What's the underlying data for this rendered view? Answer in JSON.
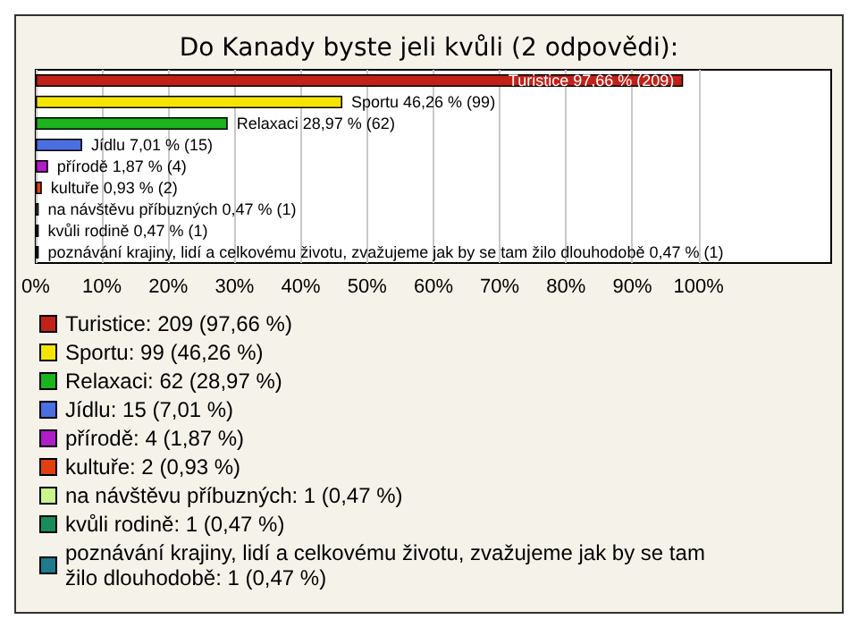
{
  "chart_data": {
    "type": "bar",
    "orientation": "horizontal",
    "title": "Do Kanady byste jeli kvůli (2 odpovědi):",
    "categories": [
      null,
      null,
      null,
      null,
      null,
      null,
      null,
      null,
      null
    ],
    "xlim": [
      0,
      120
    ],
    "xticks": [
      {
        "value": 0,
        "label": "0%"
      },
      {
        "value": 10,
        "label": "10%"
      },
      {
        "value": 20,
        "label": "20%"
      },
      {
        "value": 30,
        "label": "30%"
      },
      {
        "value": 40,
        "label": "40%"
      },
      {
        "value": 50,
        "label": "50%"
      },
      {
        "value": 60,
        "label": "60%"
      },
      {
        "value": 70,
        "label": "70%"
      },
      {
        "value": 80,
        "label": "80%"
      },
      {
        "value": 90,
        "label": "90%"
      },
      {
        "value": 100,
        "label": "100%"
      }
    ],
    "tick_labels": "x",
    "grid": "x",
    "legend": "bottom",
    "series": [
      {
        "name": "Turistice: 209 (97,66 %)",
        "color": "#c0221a",
        "values": [
          97.66,
          null,
          null,
          null,
          null,
          null,
          null,
          null,
          null
        ],
        "value_labels": [
          "Turistice 97,66 % (209)",
          null,
          null,
          null,
          null,
          null,
          null,
          null,
          null
        ]
      },
      {
        "name": "Sportu: 99 (46,26 %)",
        "color": "#f5e400",
        "values": [
          null,
          46.26,
          null,
          null,
          null,
          null,
          null,
          null,
          null
        ],
        "value_labels": [
          null,
          "Sportu 46,26 % (99)",
          null,
          null,
          null,
          null,
          null,
          null,
          null
        ]
      },
      {
        "name": "Relaxaci: 62 (28,97 %)",
        "color": "#1cb31c",
        "values": [
          null,
          null,
          28.97,
          null,
          null,
          null,
          null,
          null,
          null
        ],
        "value_labels": [
          null,
          null,
          "Relaxaci 28,97 % (62)",
          null,
          null,
          null,
          null,
          null,
          null
        ]
      },
      {
        "name": "Jídlu: 15 (7,01 %)",
        "color": "#4a6fe0",
        "values": [
          null,
          null,
          null,
          7.01,
          null,
          null,
          null,
          null,
          null
        ],
        "value_labels": [
          null,
          null,
          null,
          "Jídlu 7,01 % (15)",
          null,
          null,
          null,
          null,
          null
        ]
      },
      {
        "name": "přírodě: 4 (1,87 %)",
        "color": "#b01cc8",
        "values": [
          null,
          null,
          null,
          null,
          1.87,
          null,
          null,
          null,
          null
        ],
        "value_labels": [
          null,
          null,
          null,
          null,
          "přírodě 1,87 % (4)",
          null,
          null,
          null,
          null
        ]
      },
      {
        "name": "kultuře: 2 (0,93 %)",
        "color": "#e04010",
        "values": [
          null,
          null,
          null,
          null,
          null,
          0.93,
          null,
          null,
          null
        ],
        "value_labels": [
          null,
          null,
          null,
          null,
          null,
          "kultuře 0,93 % (2)",
          null,
          null,
          null
        ]
      },
      {
        "name": "na návštěvu příbuzných: 1 (0,47 %)",
        "color": "#c8f58c",
        "values": [
          null,
          null,
          null,
          null,
          null,
          null,
          0.47,
          null,
          null
        ],
        "value_labels": [
          null,
          null,
          null,
          null,
          null,
          null,
          "na návštěvu příbuzných 0,47 % (1)",
          null,
          null
        ]
      },
      {
        "name": "kvůli rodině: 1 (0,47 %)",
        "color": "#1a8c5a",
        "values": [
          null,
          null,
          null,
          null,
          null,
          null,
          null,
          0.47,
          null
        ],
        "value_labels": [
          null,
          null,
          null,
          null,
          null,
          null,
          null,
          "kvůli rodině 0,47 % (1)",
          null
        ]
      },
      {
        "name": "poznávání krajiny, lidí a celkovému životu, zvažujeme jak by se tam žilo dlouhodobě: 1 (0,47 %)",
        "color": "#1f7a8c",
        "values": [
          null,
          null,
          null,
          null,
          null,
          null,
          null,
          null,
          0.47
        ],
        "value_labels": [
          null,
          null,
          null,
          null,
          null,
          null,
          null,
          null,
          "poznávání krajiny, lidí a celkovému životu, zvažujeme jak by se tam žilo dlouhodobě 0,47 % (1)"
        ]
      }
    ]
  }
}
